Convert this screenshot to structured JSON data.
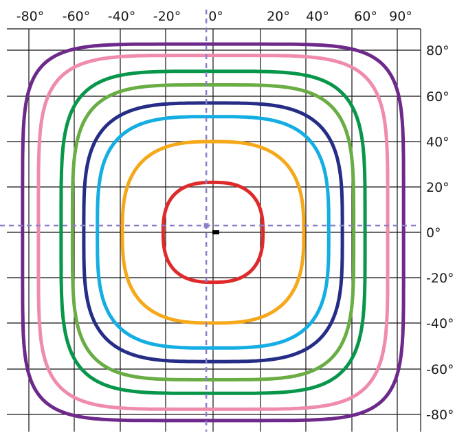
{
  "chart_data": {
    "type": "line",
    "title": "",
    "xlabel": "",
    "ylabel": "",
    "x_ticks": [
      "-80°",
      "-60°",
      "-40°",
      "-20°",
      "0°",
      "20°",
      "40°",
      "60°",
      "90°"
    ],
    "y_ticks": [
      "80°",
      "60°",
      "40°",
      "20°",
      "0°",
      "-20°",
      "-40°",
      "-60°",
      "-80°"
    ],
    "grid": true,
    "crosshair": {
      "x": -3,
      "y": 3,
      "color": "#8a7fc8",
      "style": "dashed"
    },
    "center_marker": {
      "x": 0,
      "y": 0,
      "color": "#000000"
    },
    "series": [
      {
        "color": "#e02a2a",
        "half_width": 22,
        "half_height": 22,
        "squareness": 2.6
      },
      {
        "color": "#f6a81b",
        "half_width": 40,
        "half_height": 40,
        "squareness": 2.8
      },
      {
        "color": "#14aee3",
        "half_width": 51,
        "half_height": 51,
        "squareness": 3.4
      },
      {
        "color": "#252d86",
        "half_width": 57,
        "half_height": 57,
        "squareness": 3.6
      },
      {
        "color": "#6aad45",
        "half_width": 62,
        "half_height": 65,
        "squareness": 4.2
      },
      {
        "color": "#08964a",
        "half_width": 67,
        "half_height": 71,
        "squareness": 4.5
      },
      {
        "color": "#f08cab",
        "half_width": 77,
        "half_height": 78,
        "squareness": 5.2
      },
      {
        "color": "#6e2a8a",
        "half_width": 84,
        "half_height": 83,
        "squareness": 6.0
      }
    ]
  }
}
